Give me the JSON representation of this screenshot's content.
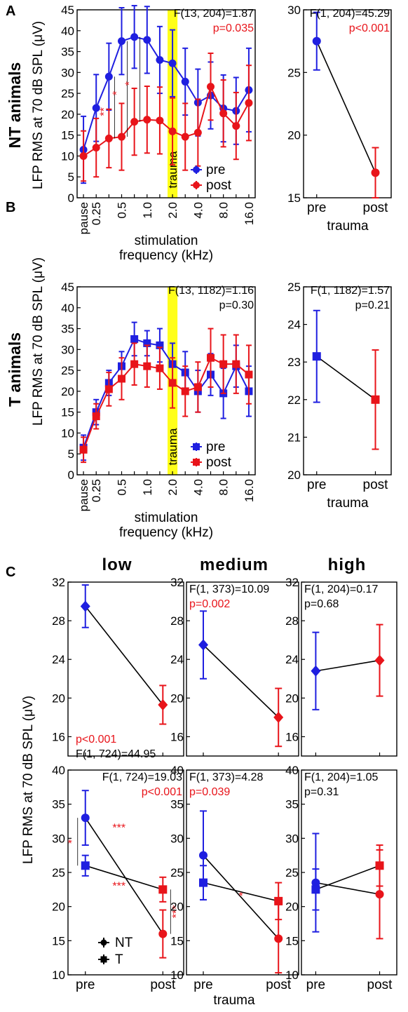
{
  "labels": {
    "panelA": "A",
    "panelB": "B",
    "panelC": "C",
    "sideA": "NT animals",
    "sideB": "T animals",
    "ylabelTop": "LFP RMS at 70 dB SPL (μV)",
    "ylabelC": "LFP RMS at 70 dB SPL (μV)",
    "xlabelFreq1": "stimulation",
    "xlabelFreq2": "frequency (kHz)",
    "xlabelTrauma": "trauma",
    "traumaBand": "trauma",
    "low": "low",
    "medium": "medium",
    "high": "high"
  },
  "colors": {
    "pre": "#1f1fe0",
    "post": "#e8141a",
    "band": "#ffff1a",
    "line": "#000000"
  },
  "chart_data": [
    {
      "id": "A-left",
      "type": "line",
      "x": [
        "pause",
        "0.25",
        "",
        "0.5",
        "",
        "1.0",
        "",
        "2.0",
        "",
        "4.0",
        "",
        "8.0",
        "",
        "16.0"
      ],
      "ylim": [
        0,
        45
      ],
      "yticks": [
        0,
        5,
        10,
        15,
        20,
        25,
        30,
        35,
        40,
        45
      ],
      "ylabel": "LFP RMS at 70 dB SPL (μV)",
      "xlabel": "stimulation frequency (kHz)",
      "band_label": "trauma",
      "band_index": 7,
      "legend": "lower-right",
      "series": [
        {
          "name": "pre",
          "color": "#1f1fe0",
          "marker": "circle",
          "values": [
            11.5,
            21.5,
            29.0,
            37.5,
            38.5,
            37.8,
            33.0,
            32.2,
            27.8,
            22.8,
            24.5,
            21.4,
            20.8,
            25.8
          ],
          "errors": [
            8,
            8,
            8,
            8,
            7.5,
            8,
            8,
            8,
            8,
            8,
            8,
            8,
            8,
            10
          ]
        },
        {
          "name": "post",
          "color": "#e8141a",
          "marker": "circle",
          "values": [
            10.0,
            12.0,
            14.2,
            14.6,
            18.2,
            18.7,
            18.5,
            15.9,
            14.6,
            15.6,
            26.6,
            20.2,
            17.2,
            22.7
          ],
          "errors": [
            6,
            7,
            7,
            8,
            8,
            8,
            8,
            8,
            8,
            8,
            8,
            8,
            8,
            9
          ]
        }
      ],
      "annotations": [
        {
          "text": "F(13, 204)=1.87",
          "color": "#000000"
        },
        {
          "text": "p=0.035",
          "color": "#e8141a"
        },
        {
          "text": "**",
          "color": "#e8141a",
          "index": 2
        },
        {
          "text": "*",
          "color": "#e8141a",
          "index": 3
        },
        {
          "text": "*",
          "color": "#e8141a",
          "index": 4
        }
      ]
    },
    {
      "id": "A-right",
      "type": "line",
      "x": [
        "pre",
        "post"
      ],
      "xlabel": "trauma",
      "ylim": [
        15,
        30
      ],
      "yticks": [
        15,
        20,
        25,
        30
      ],
      "series": [
        {
          "values": [
            27.5,
            17.0
          ],
          "errors": [
            2.3,
            2.0
          ],
          "colors": [
            "#1f1fe0",
            "#e8141a"
          ],
          "marker": "circle"
        }
      ],
      "annotations": [
        {
          "text": "F(1, 204)=45.29",
          "color": "#000000"
        },
        {
          "text": "p<0.001",
          "color": "#e8141a"
        }
      ]
    },
    {
      "id": "B-left",
      "type": "line",
      "x": [
        "pause",
        "0.25",
        "",
        "0.5",
        "",
        "1.0",
        "",
        "2.0",
        "",
        "4.0",
        "",
        "8.0",
        "",
        "16.0"
      ],
      "ylim": [
        0,
        45
      ],
      "yticks": [
        0,
        5,
        10,
        15,
        20,
        25,
        30,
        35,
        40,
        45
      ],
      "ylabel": "LFP RMS at 70 dB SPL (μV)",
      "xlabel": "stimulation frequency (kHz)",
      "band_label": "trauma",
      "band_index": 7,
      "legend": "lower-right",
      "series": [
        {
          "name": "pre",
          "color": "#1f1fe0",
          "marker": "square",
          "values": [
            6.5,
            15.0,
            22.0,
            26.0,
            32.5,
            31.5,
            31.0,
            26.5,
            24.5,
            20.0,
            24.0,
            19.5,
            26.0,
            20.0
          ],
          "errors": [
            3,
            3,
            3,
            3.5,
            4,
            3,
            4,
            5,
            5,
            5,
            5,
            6,
            5,
            6
          ]
        },
        {
          "name": "post",
          "color": "#e8141a",
          "marker": "square",
          "values": [
            6.0,
            14.0,
            20.5,
            23.0,
            26.5,
            26.0,
            25.5,
            22.0,
            20.0,
            21.0,
            28.0,
            26.5,
            26.5,
            24.0
          ],
          "errors": [
            3,
            3,
            4,
            5,
            5,
            5,
            5,
            6,
            6,
            6,
            7,
            7,
            7,
            7
          ]
        }
      ],
      "annotations": [
        {
          "text": "F(13, 1182)=1.16",
          "color": "#000000"
        },
        {
          "text": "p=0.30",
          "color": "#000000"
        }
      ]
    },
    {
      "id": "B-right",
      "type": "line",
      "x": [
        "pre",
        "post"
      ],
      "xlabel": "trauma",
      "ylim": [
        20,
        25
      ],
      "yticks": [
        20,
        21,
        22,
        23,
        24,
        25
      ],
      "series": [
        {
          "values": [
            23.15,
            22.0
          ],
          "errors": [
            1.22,
            1.32
          ],
          "colors": [
            "#1f1fe0",
            "#e8141a"
          ],
          "marker": "square"
        }
      ],
      "annotations": [
        {
          "text": "F(1, 1182)=1.57",
          "color": "#000000"
        },
        {
          "text": "p=0.21",
          "color": "#000000"
        }
      ]
    },
    {
      "id": "C-low-top",
      "type": "line",
      "group": "low",
      "x": [
        "pre",
        "post"
      ],
      "ylim": [
        14,
        32
      ],
      "yticks": [
        16,
        20,
        24,
        28,
        32
      ],
      "ylabel": "LFP RMS at 70 dB SPL (μV)",
      "series": [
        {
          "values": [
            29.5,
            19.3
          ],
          "errors": [
            2.2,
            2.0
          ],
          "colors": [
            "#1f1fe0",
            "#e8141a"
          ],
          "marker": "diamond"
        }
      ],
      "annotations": [
        {
          "text": "p<0.001",
          "color": "#e8141a"
        },
        {
          "text": "F(1, 724)=44.95",
          "color": "#000000"
        }
      ]
    },
    {
      "id": "C-medium-top",
      "type": "line",
      "group": "medium",
      "x": [
        "pre",
        "post"
      ],
      "ylim": [
        14,
        32
      ],
      "yticks": [
        16,
        20,
        24,
        28,
        32
      ],
      "series": [
        {
          "values": [
            25.5,
            18.0
          ],
          "errors": [
            3.5,
            3.0
          ],
          "colors": [
            "#1f1fe0",
            "#e8141a"
          ],
          "marker": "diamond"
        }
      ],
      "annotations": [
        {
          "text": "F(1, 373)=10.09",
          "color": "#000000"
        },
        {
          "text": "p=0.002",
          "color": "#e8141a"
        }
      ]
    },
    {
      "id": "C-high-top",
      "type": "line",
      "group": "high",
      "x": [
        "pre",
        "post"
      ],
      "ylim": [
        14,
        32
      ],
      "yticks": [
        16,
        20,
        24,
        28,
        32
      ],
      "series": [
        {
          "values": [
            22.8,
            23.9
          ],
          "errors": [
            4.0,
            3.7
          ],
          "colors": [
            "#1f1fe0",
            "#e8141a"
          ],
          "marker": "diamond"
        }
      ],
      "annotations": [
        {
          "text": "F(1, 204)=0.17",
          "color": "#000000"
        },
        {
          "text": "p=0.68",
          "color": "#000000"
        }
      ]
    },
    {
      "id": "C-low-bottom",
      "type": "line",
      "group": "low",
      "x": [
        "pre",
        "post"
      ],
      "ylim": [
        10,
        40
      ],
      "yticks": [
        10,
        15,
        20,
        25,
        30,
        35,
        40
      ],
      "ylabel": "LFP RMS at 70 dB SPL (μV)",
      "legend": "lower-left",
      "series": [
        {
          "name": "NT",
          "marker": "circle",
          "values": [
            33.0,
            16.0
          ],
          "errors": [
            4.0,
            3.5
          ],
          "colors": [
            "#1f1fe0",
            "#e8141a"
          ]
        },
        {
          "name": "T",
          "marker": "square",
          "values": [
            26.0,
            22.5
          ],
          "errors": [
            1.5,
            1.8
          ],
          "colors": [
            "#1f1fe0",
            "#e8141a"
          ]
        }
      ],
      "annotations": [
        {
          "text": "F(1, 724)=19.03",
          "color": "#000000"
        },
        {
          "text": "p<0.001",
          "color": "#e8141a"
        },
        {
          "text": "*",
          "color": "#e8141a"
        },
        {
          "text": "***",
          "color": "#e8141a"
        },
        {
          "text": "***",
          "color": "#e8141a"
        },
        {
          "text": "***",
          "color": "#e8141a"
        }
      ]
    },
    {
      "id": "C-medium-bottom",
      "type": "line",
      "group": "medium",
      "x": [
        "pre",
        "post"
      ],
      "xlabel": "trauma",
      "ylim": [
        10,
        40
      ],
      "yticks": [
        10,
        15,
        20,
        25,
        30,
        35,
        40
      ],
      "series": [
        {
          "name": "NT",
          "marker": "circle",
          "values": [
            27.5,
            15.3
          ],
          "errors": [
            6.5,
            5.0
          ],
          "colors": [
            "#1f1fe0",
            "#e8141a"
          ]
        },
        {
          "name": "T",
          "marker": "square",
          "values": [
            23.5,
            20.8
          ],
          "errors": [
            2.5,
            2.7
          ],
          "colors": [
            "#1f1fe0",
            "#e8141a"
          ]
        }
      ],
      "annotations": [
        {
          "text": "F(1, 373)=4.28",
          "color": "#000000"
        },
        {
          "text": "p=0.039",
          "color": "#e8141a"
        },
        {
          "text": "*",
          "color": "#e8141a"
        }
      ]
    },
    {
      "id": "C-high-bottom",
      "type": "line",
      "group": "high",
      "x": [
        "pre",
        "post"
      ],
      "ylim": [
        10,
        40
      ],
      "yticks": [
        10,
        15,
        20,
        25,
        30,
        35,
        40
      ],
      "series": [
        {
          "name": "NT",
          "marker": "circle",
          "values": [
            23.5,
            21.8
          ],
          "errors": [
            7.2,
            6.5
          ],
          "colors": [
            "#1f1fe0",
            "#e8141a"
          ]
        },
        {
          "name": "T",
          "marker": "square",
          "values": [
            22.5,
            26.0
          ],
          "errors": [
            3.0,
            3.0
          ],
          "colors": [
            "#1f1fe0",
            "#e8141a"
          ]
        }
      ],
      "annotations": [
        {
          "text": "F(1, 204)=1.05",
          "color": "#000000"
        },
        {
          "text": "p=0.31",
          "color": "#000000"
        }
      ]
    }
  ]
}
